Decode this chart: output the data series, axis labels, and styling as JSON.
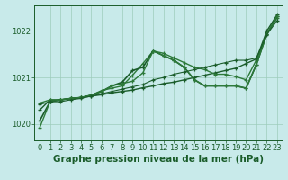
{
  "title": "Graphe pression niveau de la mer (hPa)",
  "bg_color": "#c8eaea",
  "grid_color": "#9dccbb",
  "line_color_dark": "#1a5c2a",
  "line_color_medium": "#2d7a3a",
  "xlim": [
    -0.5,
    23.5
  ],
  "ylim": [
    1019.65,
    1022.55
  ],
  "yticks": [
    1020,
    1021,
    1022
  ],
  "xticks": [
    0,
    1,
    2,
    3,
    4,
    5,
    6,
    7,
    8,
    9,
    10,
    11,
    12,
    13,
    14,
    15,
    16,
    17,
    18,
    19,
    20,
    21,
    22,
    23
  ],
  "series": [
    [
      1020.3,
      1020.52,
      1020.52,
      1020.55,
      1020.57,
      1020.6,
      1020.63,
      1020.67,
      1020.7,
      1020.73,
      1020.78,
      1020.82,
      1020.87,
      1020.9,
      1020.95,
      1021.0,
      1021.05,
      1021.1,
      1021.15,
      1021.2,
      1021.3,
      1021.4,
      1022.0,
      1022.35
    ],
    [
      1020.45,
      1020.52,
      1020.52,
      1020.55,
      1020.57,
      1020.62,
      1020.72,
      1020.77,
      1020.82,
      1021.05,
      1021.3,
      1021.57,
      1021.52,
      1021.42,
      1021.32,
      1021.22,
      1021.17,
      1021.07,
      1021.07,
      1021.02,
      1020.95,
      1021.38,
      1021.93,
      1022.28
    ],
    [
      1020.07,
      1020.48,
      1020.52,
      1020.55,
      1020.57,
      1020.62,
      1020.7,
      1020.82,
      1020.9,
      1021.15,
      1021.22,
      1021.57,
      1021.47,
      1021.37,
      1021.22,
      1020.95,
      1020.82,
      1020.82,
      1020.82,
      1020.82,
      1020.77,
      1021.28,
      1021.93,
      1022.32
    ],
    [
      1019.92,
      1020.48,
      1020.52,
      1020.55,
      1020.57,
      1020.62,
      1020.7,
      1020.82,
      1020.87,
      1020.92,
      1021.1,
      1021.57,
      1021.47,
      1021.37,
      1021.22,
      1020.95,
      1020.82,
      1020.82,
      1020.82,
      1020.82,
      1020.77,
      1021.28,
      1021.93,
      1022.32
    ],
    [
      1020.42,
      1020.48,
      1020.48,
      1020.52,
      1020.55,
      1020.6,
      1020.65,
      1020.7,
      1020.75,
      1020.8,
      1020.85,
      1020.95,
      1021.0,
      1021.07,
      1021.12,
      1021.17,
      1021.22,
      1021.27,
      1021.32,
      1021.37,
      1021.37,
      1021.42,
      1021.92,
      1022.22
    ]
  ],
  "tick_fontsize": 6,
  "label_fontsize": 7.5
}
